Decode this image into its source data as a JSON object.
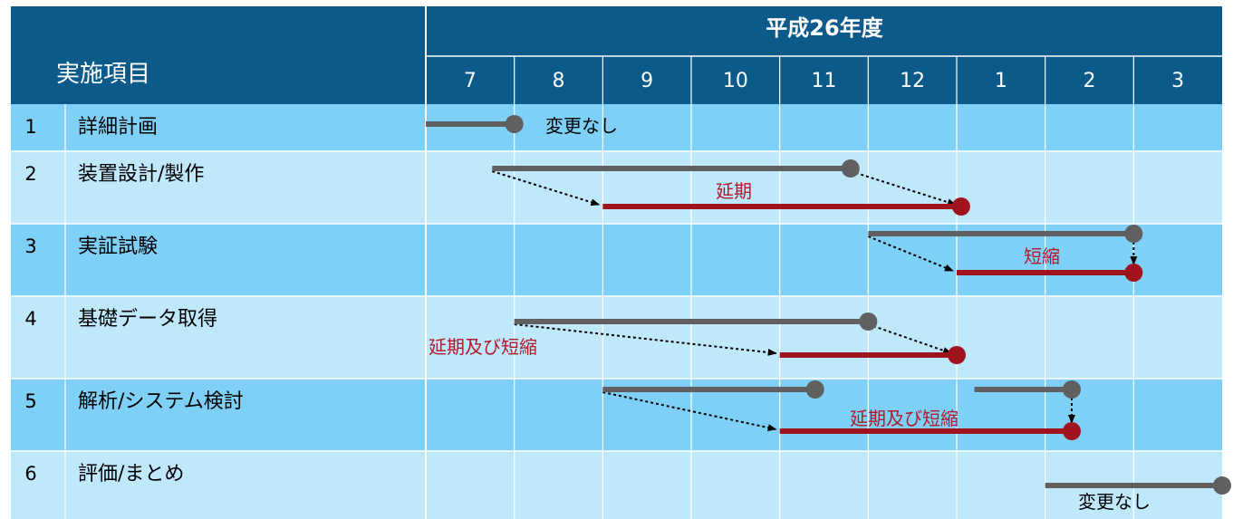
{
  "colors": {
    "header_bg": "#0b5a8a",
    "row_dark": "#7fd0f6",
    "row_light": "#bfe8fb",
    "grid_line": "#ffffff",
    "plan_bar": "#606060",
    "actual_bar": "#a0141e",
    "annotation_red": "#b0192a",
    "annotation_black": "#000000"
  },
  "header": {
    "item_label": "実施項目",
    "year_label": "平成26年度",
    "months": [
      "7",
      "8",
      "9",
      "10",
      "11",
      "12",
      "1",
      "2",
      "3"
    ]
  },
  "rows": [
    {
      "no": "1",
      "name": "詳細計画"
    },
    {
      "no": "2",
      "name": "装置設計/製作"
    },
    {
      "no": "3",
      "name": "実証試験"
    },
    {
      "no": "4",
      "name": "基礎データ取得"
    },
    {
      "no": "5",
      "name": "解析/システム検討"
    },
    {
      "no": "6",
      "name": "評価/まとめ"
    }
  ],
  "schedule": [
    {
      "row": 0,
      "planned": [
        {
          "start": 0,
          "end": 1
        }
      ],
      "actual": [],
      "arrows": [],
      "note": {
        "text": "変更なし",
        "color": "black"
      }
    },
    {
      "row": 1,
      "planned": [
        {
          "start": 0.75,
          "end": 4.8
        }
      ],
      "actual": [
        {
          "start": 2.0,
          "end": 6.05
        }
      ],
      "arrows": [
        {
          "from": "planned_start",
          "to": "actual_start"
        },
        {
          "from": "planned_end",
          "to": "actual_end"
        }
      ],
      "note": {
        "text": "延期",
        "color": "red"
      }
    },
    {
      "row": 2,
      "planned": [
        {
          "start": 5.0,
          "end": 8.0
        }
      ],
      "actual": [
        {
          "start": 6.0,
          "end": 8.0
        }
      ],
      "arrows": [
        {
          "from": "planned_start",
          "to": "actual_start"
        },
        {
          "from": "planned_end",
          "to": "actual_end"
        }
      ],
      "note": {
        "text": "短縮",
        "color": "red"
      }
    },
    {
      "row": 3,
      "planned": [
        {
          "start": 1.0,
          "end": 5.0
        }
      ],
      "actual": [
        {
          "start": 4.0,
          "end": 6.0
        }
      ],
      "arrows": [
        {
          "from": "planned_start",
          "to": "actual_start"
        },
        {
          "from": "planned_end",
          "to": "actual_end"
        }
      ],
      "note": {
        "text": "延期及び短縮",
        "color": "red"
      }
    },
    {
      "row": 4,
      "planned": [
        {
          "start": 2.0,
          "end": 4.4
        },
        {
          "start": 6.2,
          "end": 7.3
        }
      ],
      "actual": [
        {
          "start": 4.0,
          "end": 7.3
        }
      ],
      "arrows": [
        {
          "from": "planned_start",
          "to": "actual_start"
        },
        {
          "from": "planned_end",
          "to": "actual_end"
        }
      ],
      "note": {
        "text": "延期及び短縮",
        "color": "red"
      }
    },
    {
      "row": 5,
      "planned": [
        {
          "start": 7.0,
          "end": 9.0
        }
      ],
      "actual": [],
      "arrows": [],
      "note": {
        "text": "変更なし",
        "color": "black"
      }
    }
  ]
}
